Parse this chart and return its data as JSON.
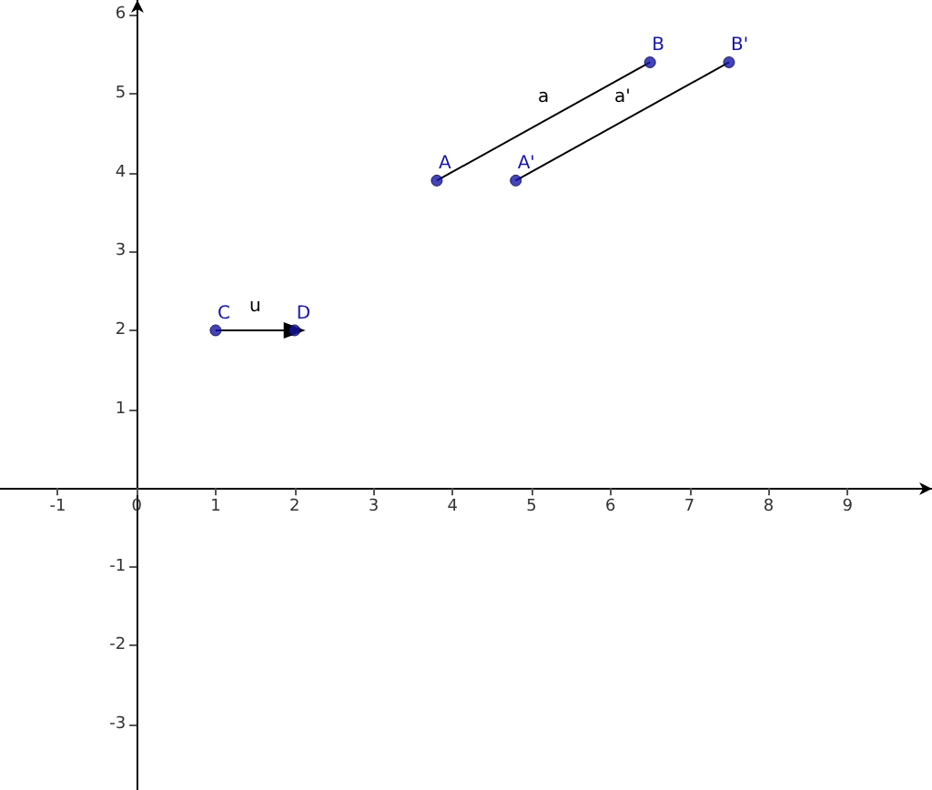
{
  "chart_data": {
    "type": "line",
    "xlim": [
      -1.73,
      10.07
    ],
    "ylim": [
      -3.83,
      6.19
    ],
    "xticks": [
      -1,
      0,
      1,
      2,
      3,
      4,
      5,
      6,
      7,
      8,
      9
    ],
    "yticks": [
      -3,
      -2,
      -1,
      1,
      2,
      3,
      4,
      5,
      6
    ],
    "grid": false,
    "series": [
      {
        "name": "a",
        "color": "#000000",
        "x": [
          3.8,
          6.5
        ],
        "values": [
          3.9,
          5.4
        ],
        "marker": "none"
      },
      {
        "name": "a'",
        "color": "#000000",
        "x": [
          4.8,
          7.5
        ],
        "values": [
          3.9,
          5.4
        ],
        "marker": "none"
      },
      {
        "name": "u",
        "color": "#000000",
        "x": [
          1,
          2
        ],
        "values": [
          2,
          2
        ],
        "marker": "triangle"
      },
      {
        "type": "scatter",
        "color": "#1515a6",
        "x": [
          3.8,
          6.5,
          4.8,
          7.5,
          1,
          2
        ],
        "values": [
          3.9,
          5.4,
          3.9,
          5.4,
          2,
          2
        ],
        "marker": "circle"
      }
    ],
    "annotations": [
      {
        "text": "A",
        "x": 3.8,
        "y": 3.9
      },
      {
        "text": "B",
        "x": 6.5,
        "y": 5.4
      },
      {
        "text": "A'",
        "x": 4.8,
        "y": 3.9
      },
      {
        "text": "B'",
        "x": 7.5,
        "y": 5.4
      },
      {
        "text": "C",
        "x": 1,
        "y": 2
      },
      {
        "text": "D",
        "x": 2,
        "y": 2
      }
    ]
  }
}
